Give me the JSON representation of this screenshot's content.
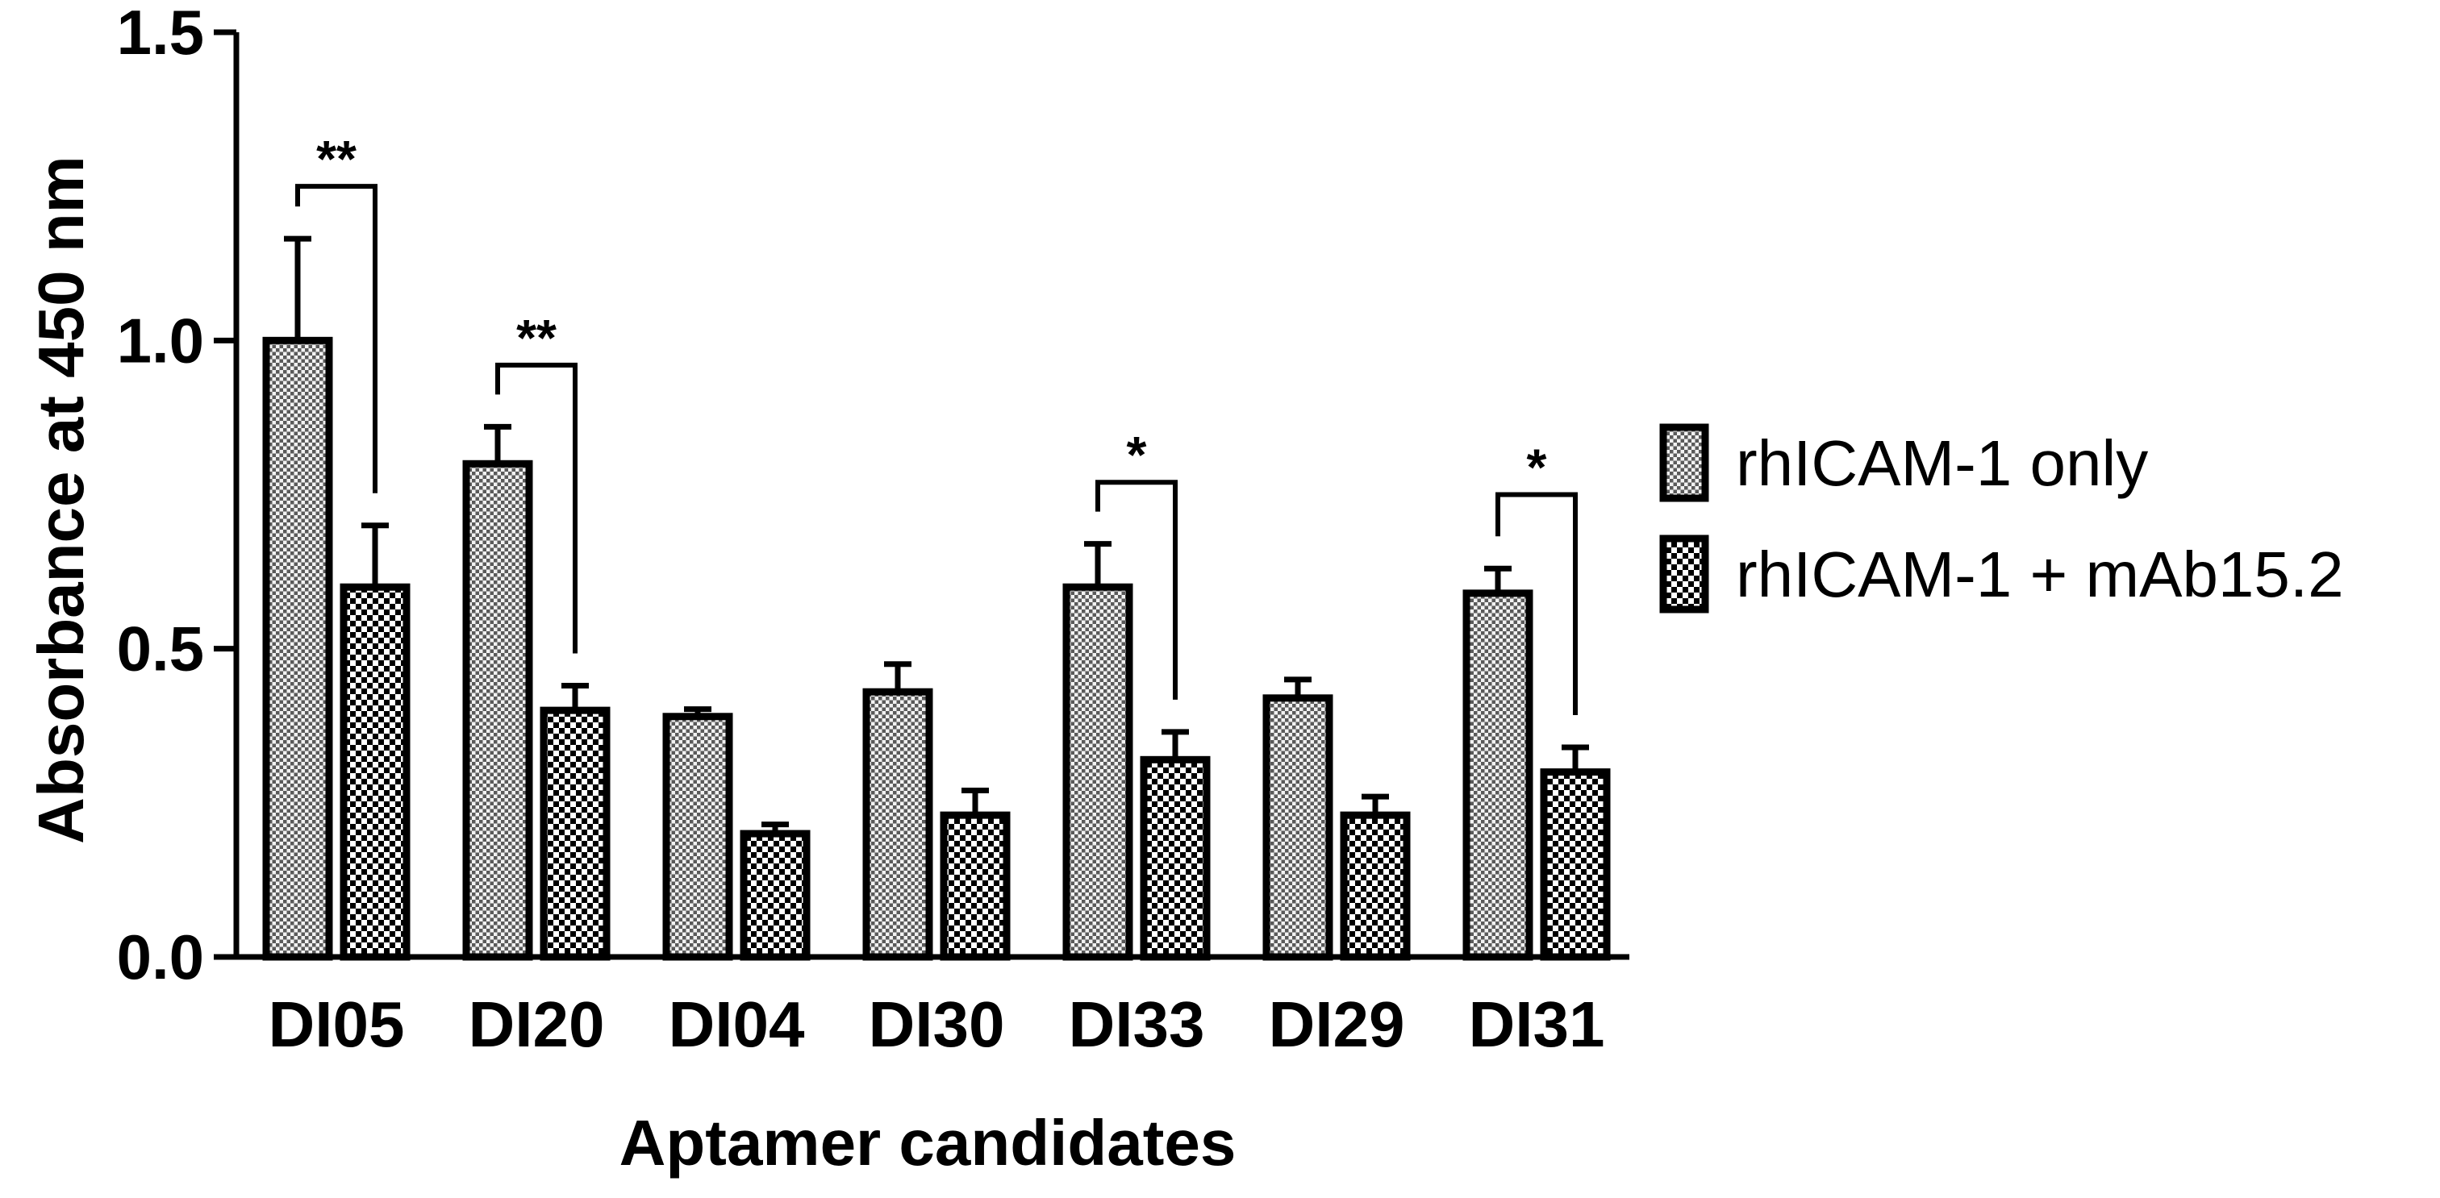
{
  "chart_data": {
    "type": "bar",
    "title": "",
    "xlabel": "Aptamer candidates",
    "ylabel": "Absorbance at 450 nm",
    "ylim": [
      0,
      1.5
    ],
    "yticks": [
      "0.0",
      "0.5",
      "1.0",
      "1.5"
    ],
    "categories": [
      "DI05",
      "DI20",
      "DI04",
      "DI30",
      "DI33",
      "DI29",
      "DI31"
    ],
    "series": [
      {
        "name": "rhICAM-1 only",
        "pattern": "fine-dots",
        "values": [
          1.0,
          0.8,
          0.39,
          0.43,
          0.6,
          0.42,
          0.59
        ],
        "errors": [
          0.165,
          0.06,
          0.012,
          0.045,
          0.07,
          0.03,
          0.04
        ]
      },
      {
        "name": "rhICAM-1 + mAb15.2",
        "pattern": "checkerboard",
        "values": [
          0.6,
          0.4,
          0.2,
          0.23,
          0.32,
          0.23,
          0.3
        ],
        "errors": [
          0.1,
          0.04,
          0.015,
          0.04,
          0.045,
          0.03,
          0.04
        ]
      }
    ],
    "significance": [
      {
        "category": "DI05",
        "label": "**",
        "level": 1.25
      },
      {
        "category": "DI20",
        "label": "**",
        "level": 0.96
      },
      {
        "category": "DI33",
        "label": "*",
        "level": 0.77
      },
      {
        "category": "DI31",
        "label": "*",
        "level": 0.75
      }
    ],
    "legend_position": "right",
    "grid": false,
    "colors": {
      "bar_stroke": "#000000",
      "pattern_ink": "#000000",
      "background": "#ffffff"
    }
  }
}
